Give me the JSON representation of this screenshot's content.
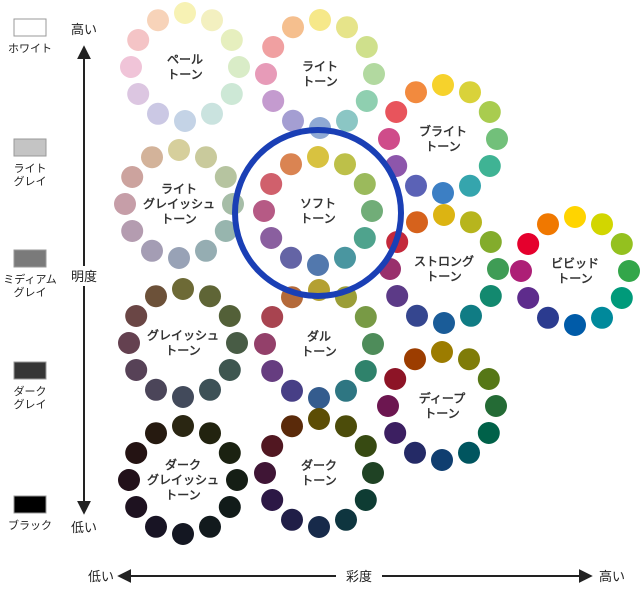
{
  "axes": {
    "brightness": {
      "label": "明度",
      "high": "高い",
      "low": "低い"
    },
    "saturation": {
      "label": "彩度",
      "low": "低い",
      "high": "高い"
    }
  },
  "grayscale": [
    {
      "label": [
        "ホワイト"
      ],
      "color": "#ffffff"
    },
    {
      "label": [
        "ライト",
        "グレイ"
      ],
      "color": "#c4c4c4"
    },
    {
      "label": [
        "ミディアム",
        "グレイ"
      ],
      "color": "#7a7a7a"
    },
    {
      "label": [
        "ダーク",
        "グレイ"
      ],
      "color": "#363636"
    },
    {
      "label": [
        "ブラック"
      ],
      "color": "#000000"
    }
  ],
  "tones": [
    {
      "name": [
        "ペール",
        "トーン"
      ],
      "dark_text": false,
      "colors": [
        "#f7f2b4",
        "#f3f0c0",
        "#e6efbe",
        "#d9ecc7",
        "#cde8d6",
        "#cae3df",
        "#c4d3e6",
        "#cbc8e4",
        "#dcc6e1",
        "#f0c4d8",
        "#f4c4c6",
        "#f7d3b9"
      ]
    },
    {
      "name": [
        "ライト",
        "トーン"
      ],
      "dark_text": false,
      "colors": [
        "#f6e88a",
        "#e6e48a",
        "#cfe08c",
        "#b2d9a0",
        "#8fcfb0",
        "#8bc6c4",
        "#8fa9d4",
        "#a49ed2",
        "#c49bcf",
        "#e79bb8",
        "#f0a0a1",
        "#f5bf8e"
      ]
    },
    {
      "name": [
        "ブライト",
        "トーン"
      ],
      "dark_text": false,
      "colors": [
        "#f6d22c",
        "#d9d23a",
        "#a9cc4f",
        "#72c07a",
        "#3fb394",
        "#35a5ad",
        "#3c7fc4",
        "#5b62b6",
        "#8d56ab",
        "#cf4c8a",
        "#e8545c",
        "#f28a3e"
      ]
    },
    {
      "name": [
        "ライト",
        "グレイッシュ",
        "トーン"
      ],
      "dark_text": false,
      "colors": [
        "#d6cf9c",
        "#c9ca9c",
        "#b6c4a0",
        "#a6bda7",
        "#97b5ae",
        "#95adb2",
        "#98a2b6",
        "#a49db4",
        "#b49cb0",
        "#c69ea8",
        "#cca39e",
        "#d3b39a"
      ]
    },
    {
      "name": [
        "ソフト",
        "トーン"
      ],
      "dark_text": false,
      "colors": [
        "#d8c240",
        "#bdc049",
        "#9bba5c",
        "#71ad78",
        "#4fa38d",
        "#4a96a0",
        "#5278ad",
        "#6464a5",
        "#8a5f9f",
        "#b65a85",
        "#d0606c",
        "#da8452"
      ]
    },
    {
      "name": [
        "ストロング",
        "トーン"
      ],
      "dark_text": false,
      "colors": [
        "#dcb412",
        "#b7b51d",
        "#83ac2c",
        "#3f9c55",
        "#13896f",
        "#107c84",
        "#1a5c98",
        "#35468f",
        "#5c3a87",
        "#99306c",
        "#c4293c",
        "#d6621c"
      ]
    },
    {
      "name": [
        "ビビッド",
        "トーン"
      ],
      "dark_text": false,
      "colors": [
        "#ffd400",
        "#d2d600",
        "#94c11f",
        "#33a64a",
        "#009a7a",
        "#00899b",
        "#005ba8",
        "#2b3b8f",
        "#5e2c8c",
        "#ad1f76",
        "#e5002d",
        "#f07800"
      ]
    },
    {
      "name": [
        "グレイッシュ",
        "トーン"
      ],
      "dark_text": false,
      "colors": [
        "#6d6a36",
        "#5f6536",
        "#536038",
        "#485c45",
        "#3e5650",
        "#3d5157",
        "#424a5b",
        "#4b4559",
        "#574257",
        "#644150",
        "#6a4645",
        "#6c5139"
      ]
    },
    {
      "name": [
        "ダル",
        "トーン"
      ],
      "dark_text": false,
      "colors": [
        "#b4a032",
        "#9b9e37",
        "#789a45",
        "#4e8c5a",
        "#2f826b",
        "#2e7682",
        "#345c8e",
        "#473f86",
        "#663d80",
        "#93406a",
        "#a84450",
        "#b46a3a"
      ]
    },
    {
      "name": [
        "ディープ",
        "トーン"
      ],
      "dark_text": false,
      "colors": [
        "#9c7c00",
        "#7f7c08",
        "#567716",
        "#246b35",
        "#006149",
        "#00555f",
        "#103e70",
        "#242a66",
        "#3c1f61",
        "#6c1650",
        "#8d1426",
        "#9c3d00"
      ]
    },
    {
      "name": [
        "ダーク",
        "グレイッシュ",
        "トーン"
      ],
      "dark_text": false,
      "colors": [
        "#2a2612",
        "#22230f",
        "#1b2211",
        "#151e15",
        "#111b19",
        "#121a1d",
        "#141722",
        "#181424",
        "#1e1220",
        "#22111a",
        "#241313",
        "#261a10"
      ]
    },
    {
      "name": [
        "ダーク",
        "トーン"
      ],
      "dark_text": false,
      "colors": [
        "#5c4d05",
        "#4c4c0a",
        "#374a12",
        "#1f4224",
        "#0e3c33",
        "#0e353f",
        "#172a4a",
        "#201e47",
        "#2c1845",
        "#3f1535",
        "#511721",
        "#5a2a0a"
      ]
    }
  ]
}
